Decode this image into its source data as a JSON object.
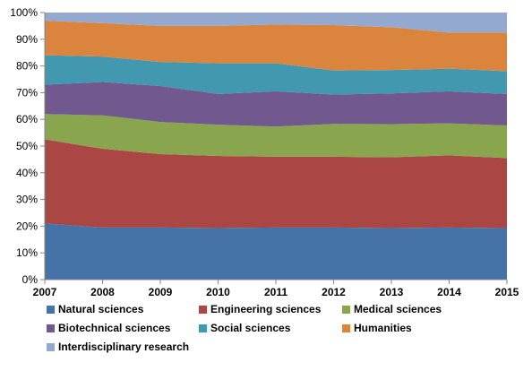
{
  "chart_data": {
    "type": "area",
    "stacked": true,
    "percent": true,
    "x": [
      "2007",
      "2008",
      "2009",
      "2010",
      "2011",
      "2012",
      "2013",
      "2014",
      "2015"
    ],
    "ylim": [
      0,
      100
    ],
    "yticks": [
      "0%",
      "10%",
      "20%",
      "30%",
      "40%",
      "50%",
      "60%",
      "70%",
      "80%",
      "90%",
      "100%"
    ],
    "grid": false,
    "legend": "bottom",
    "series": [
      {
        "name": "Natural sciences",
        "color": "#4572A7",
        "values": [
          21,
          19.5,
          19.5,
          19.3,
          19.5,
          19.5,
          19.3,
          19.5,
          19.3
        ]
      },
      {
        "name": "Engineering sciences",
        "color": "#AA4643",
        "values": [
          31.5,
          29.5,
          27.5,
          27,
          26.5,
          26.5,
          26.5,
          27,
          26.2
        ]
      },
      {
        "name": "Medical sciences",
        "color": "#89A54E",
        "values": [
          9.5,
          12.5,
          12,
          11.7,
          11.3,
          12.3,
          12.4,
          12,
          12.2
        ]
      },
      {
        "name": "Biotechnical sciences",
        "color": "#71588F",
        "values": [
          11,
          12.5,
          13.5,
          11.5,
          13.2,
          11,
          11.5,
          12,
          11.8
        ]
      },
      {
        "name": "Social sciences",
        "color": "#4198AF",
        "values": [
          11,
          9.5,
          9,
          11.5,
          10.5,
          9,
          8.8,
          8.5,
          8.5
        ]
      },
      {
        "name": "Humanities",
        "color": "#DB843D",
        "values": [
          13,
          12.5,
          13.5,
          14,
          14.5,
          17,
          16,
          13.5,
          14.5
        ]
      },
      {
        "name": "Interdisciplinary research",
        "color": "#93A9CF",
        "values": [
          3,
          4,
          5,
          5,
          4.5,
          4.7,
          5.5,
          7.5,
          7.5
        ]
      }
    ]
  }
}
